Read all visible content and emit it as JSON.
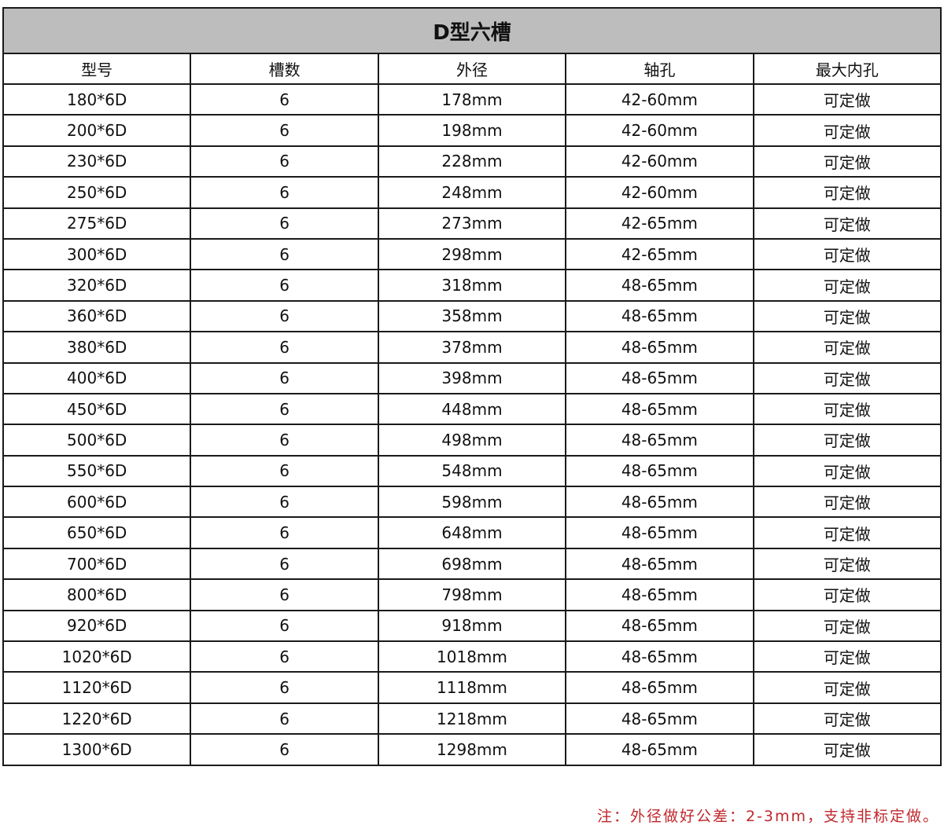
{
  "title": "D型六槽",
  "columns": [
    "型号",
    "槽数",
    "外径",
    "轴孔",
    "最大内孔"
  ],
  "rows": [
    [
      "180*6D",
      "6",
      "178mm",
      "42-60mm",
      "可定做"
    ],
    [
      "200*6D",
      "6",
      "198mm",
      "42-60mm",
      "可定做"
    ],
    [
      "230*6D",
      "6",
      "228mm",
      "42-60mm",
      "可定做"
    ],
    [
      "250*6D",
      "6",
      "248mm",
      "42-60mm",
      "可定做"
    ],
    [
      "275*6D",
      "6",
      "273mm",
      "42-65mm",
      "可定做"
    ],
    [
      "300*6D",
      "6",
      "298mm",
      "42-65mm",
      "可定做"
    ],
    [
      "320*6D",
      "6",
      "318mm",
      "48-65mm",
      "可定做"
    ],
    [
      "360*6D",
      "6",
      "358mm",
      "48-65mm",
      "可定做"
    ],
    [
      "380*6D",
      "6",
      "378mm",
      "48-65mm",
      "可定做"
    ],
    [
      "400*6D",
      "6",
      "398mm",
      "48-65mm",
      "可定做"
    ],
    [
      "450*6D",
      "6",
      "448mm",
      "48-65mm",
      "可定做"
    ],
    [
      "500*6D",
      "6",
      "498mm",
      "48-65mm",
      "可定做"
    ],
    [
      "550*6D",
      "6",
      "548mm",
      "48-65mm",
      "可定做"
    ],
    [
      "600*6D",
      "6",
      "598mm",
      "48-65mm",
      "可定做"
    ],
    [
      "650*6D",
      "6",
      "648mm",
      "48-65mm",
      "可定做"
    ],
    [
      "700*6D",
      "6",
      "698mm",
      "48-65mm",
      "可定做"
    ],
    [
      "800*6D",
      "6",
      "798mm",
      "48-65mm",
      "可定做"
    ],
    [
      "920*6D",
      "6",
      "918mm",
      "48-65mm",
      "可定做"
    ],
    [
      "1020*6D",
      "6",
      "1018mm",
      "48-65mm",
      "可定做"
    ],
    [
      "1120*6D",
      "6",
      "1118mm",
      "48-65mm",
      "可定做"
    ],
    [
      "1220*6D",
      "6",
      "1218mm",
      "48-65mm",
      "可定做"
    ],
    [
      "1300*6D",
      "6",
      "1298mm",
      "48-65mm",
      "可定做"
    ]
  ],
  "note": "注：外径做好公差：2-3mm，支持非标定做。",
  "colors": {
    "title_bg": "#bdbdbd",
    "note": "#c0282d",
    "border": "#1a1a1a"
  }
}
